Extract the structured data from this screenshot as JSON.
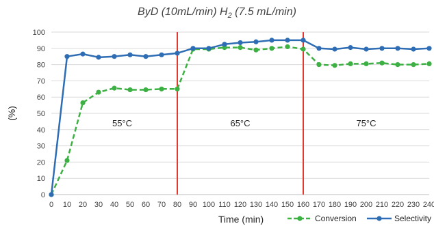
{
  "chart_data": {
    "type": "line",
    "title_parts": {
      "a": "ByD (10mL/min) H",
      "sub": "2",
      "b": " (7.5 mL/min)"
    },
    "xlabel": "Time (min)",
    "ylabel": "(%)",
    "xlim": [
      0,
      240
    ],
    "ylim": [
      0,
      100
    ],
    "x_ticks": [
      0,
      10,
      20,
      30,
      40,
      50,
      60,
      70,
      80,
      90,
      100,
      110,
      120,
      130,
      140,
      150,
      160,
      170,
      180,
      190,
      200,
      210,
      220,
      230,
      240
    ],
    "y_ticks": [
      0,
      10,
      20,
      30,
      40,
      50,
      60,
      70,
      80,
      90,
      100
    ],
    "grid": "horizontal",
    "legend_position": "bottom-right",
    "x": [
      0,
      10,
      20,
      30,
      40,
      50,
      60,
      70,
      80,
      90,
      100,
      110,
      120,
      130,
      140,
      150,
      160,
      170,
      180,
      190,
      200,
      210,
      220,
      230,
      240
    ],
    "series": [
      {
        "name": "Conversion",
        "color": "#3cb043",
        "style": "dashed",
        "values": [
          0,
          21,
          56.5,
          63,
          65.5,
          64.5,
          64.5,
          65,
          65,
          89.5,
          89.5,
          90.5,
          90.5,
          89,
          90,
          91,
          89.5,
          80,
          79.5,
          80.5,
          80.5,
          81,
          80,
          80,
          80.5
        ]
      },
      {
        "name": "Selectivity",
        "color": "#2e6db4",
        "style": "solid",
        "values": [
          0,
          85,
          86.5,
          84.5,
          85,
          86,
          85,
          86,
          87,
          90,
          90,
          92.5,
          93.5,
          94,
          95,
          95,
          95,
          90,
          89.5,
          90.5,
          89.5,
          90,
          90,
          89.5,
          90
        ]
      }
    ],
    "dividers": [
      {
        "x": 80,
        "color": "#e03a2f"
      },
      {
        "x": 160,
        "color": "#e03a2f"
      }
    ],
    "annotations": [
      {
        "text": "55°C",
        "x": 45,
        "y": 42
      },
      {
        "text": "65°C",
        "x": 120,
        "y": 42
      },
      {
        "text": "75°C",
        "x": 200,
        "y": 42
      }
    ]
  }
}
